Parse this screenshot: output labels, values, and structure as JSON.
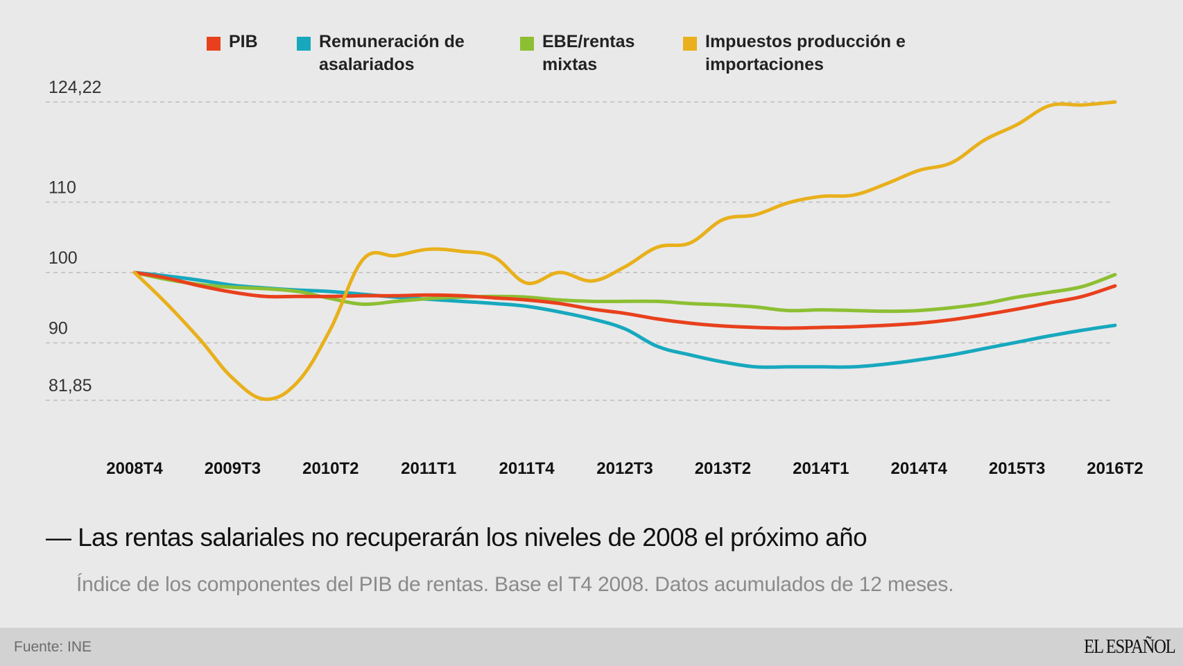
{
  "legend": [
    {
      "label": "PIB",
      "color": "#e8401c"
    },
    {
      "label": "Remuneración de\nasalariados",
      "color": "#17a8be"
    },
    {
      "label": "EBE/rentas\nmixtas",
      "color": "#8dbf33"
    },
    {
      "label": "Impuestos producción e\nimportaciones",
      "color": "#e8b01c"
    }
  ],
  "title": "— Las rentas salariales no recuperarán los niveles de 2008 el próximo año",
  "subtitle": "Índice de los componentes del PIB de rentas. Base el T4 2008. Datos acumulados de 12 meses.",
  "footer": {
    "source": "Fuente: INE",
    "brand": "EL ESPAÑOL"
  },
  "chart_data": {
    "type": "line",
    "title": "Las rentas salariales no recuperarán los niveles de 2008 el próximo año",
    "subtitle": "Índice de los componentes del PIB de rentas. Base el T4 2008. Datos acumulados de 12 meses.",
    "xlabel": "",
    "ylabel": "",
    "ylim": [
      81.85,
      124.22
    ],
    "yticks": [
      124.22,
      110,
      100,
      90,
      81.85
    ],
    "ytick_labels": [
      "124,22",
      "110",
      "100",
      "90",
      "81,85"
    ],
    "grid": true,
    "legend_position": "top",
    "x": [
      "2008T4",
      "2009T1",
      "2009T2",
      "2009T3",
      "2009T4",
      "2010T1",
      "2010T2",
      "2010T3",
      "2010T4",
      "2011T1",
      "2011T2",
      "2011T3",
      "2011T4",
      "2012T1",
      "2012T2",
      "2012T3",
      "2012T4",
      "2013T1",
      "2013T2",
      "2013T3",
      "2013T4",
      "2014T1",
      "2014T2",
      "2014T3",
      "2014T4",
      "2015T1",
      "2015T2",
      "2015T3",
      "2015T4",
      "2016T1",
      "2016T2"
    ],
    "xtick_labels": [
      "2008T4",
      "2009T3",
      "2010T2",
      "2011T1",
      "2011T4",
      "2012T3",
      "2013T2",
      "2014T1",
      "2014T4",
      "2015T3",
      "2016T2"
    ],
    "series": [
      {
        "name": "PIB",
        "color": "#e8401c",
        "values": [
          100,
          99.2,
          98.1,
          97.2,
          96.6,
          96.6,
          96.6,
          96.7,
          96.7,
          96.8,
          96.7,
          96.4,
          96.1,
          95.6,
          94.8,
          94.2,
          93.4,
          92.8,
          92.4,
          92.2,
          92.1,
          92.2,
          92.3,
          92.5,
          92.8,
          93.3,
          94.0,
          94.8,
          95.7,
          96.6,
          98.1
        ]
      },
      {
        "name": "Remuneración de asalariados",
        "color": "#17a8be",
        "values": [
          100,
          99.5,
          98.9,
          98.2,
          97.8,
          97.5,
          97.3,
          96.9,
          96.5,
          96.2,
          95.9,
          95.6,
          95.2,
          94.4,
          93.4,
          92.0,
          89.5,
          88.3,
          87.3,
          86.6,
          86.6,
          86.6,
          86.6,
          87.0,
          87.6,
          88.3,
          89.2,
          90.1,
          91.0,
          91.8,
          92.5
        ]
      },
      {
        "name": "EBE/rentas mixtas",
        "color": "#8dbf33",
        "values": [
          100,
          99.0,
          98.3,
          97.9,
          97.7,
          97.3,
          96.3,
          95.5,
          95.9,
          96.3,
          96.5,
          96.6,
          96.5,
          96.1,
          95.9,
          95.9,
          95.9,
          95.6,
          95.4,
          95.1,
          94.6,
          94.7,
          94.6,
          94.5,
          94.6,
          95.0,
          95.6,
          96.5,
          97.2,
          98.0,
          99.7
        ]
      },
      {
        "name": "Impuestos producción e importaciones",
        "color": "#e8b01c",
        "values": [
          100,
          95.5,
          90.5,
          85.0,
          82.0,
          84.5,
          92.0,
          101.9,
          102.4,
          103.3,
          103.0,
          102.2,
          98.5,
          100.0,
          98.8,
          100.8,
          103.6,
          104.2,
          107.5,
          108.2,
          109.9,
          110.8,
          111.0,
          112.6,
          114.5,
          115.6,
          118.8,
          121.0,
          123.7,
          123.8,
          124.22
        ]
      }
    ]
  }
}
